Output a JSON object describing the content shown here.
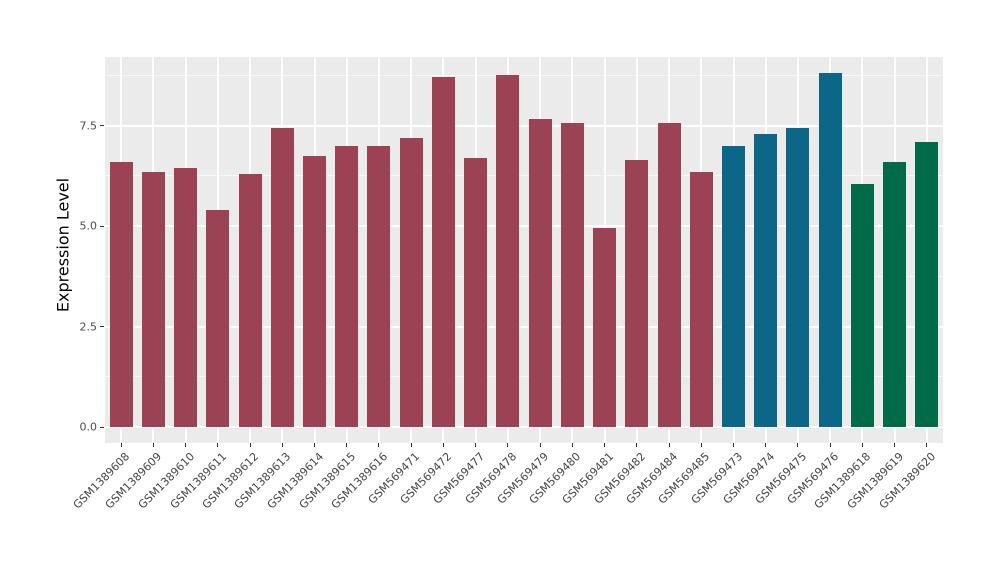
{
  "chart_data": {
    "type": "bar",
    "title": "",
    "xlabel": "",
    "ylabel": "Expression Level",
    "ylim": [
      0,
      8.8
    ],
    "yticks": [
      0.0,
      2.5,
      5.0,
      7.5
    ],
    "ytick_labels": [
      "0.0",
      "2.5",
      "5.0",
      "7.5"
    ],
    "yticks_minor": [
      1.25,
      3.75,
      6.25,
      8.75
    ],
    "grid": "grey panel with white major/minor gridlines (ggplot style)",
    "legend_position": "none",
    "categories": [
      "GSM1389608",
      "GSM1389609",
      "GSM1389610",
      "GSM1389611",
      "GSM1389612",
      "GSM1389613",
      "GSM1389614",
      "GSM1389615",
      "GSM1389616",
      "GSM569471",
      "GSM569472",
      "GSM569477",
      "GSM569478",
      "GSM569479",
      "GSM569480",
      "GSM569481",
      "GSM569482",
      "GSM569484",
      "GSM569485",
      "GSM569473",
      "GSM569474",
      "GSM569475",
      "GSM569476",
      "GSM1389618",
      "GSM1389619",
      "GSM1389620"
    ],
    "values": [
      6.6,
      6.35,
      6.45,
      5.4,
      6.3,
      7.45,
      6.75,
      7.0,
      7.0,
      7.2,
      8.7,
      6.7,
      8.75,
      7.65,
      7.55,
      4.95,
      6.65,
      7.55,
      6.35,
      7.0,
      7.3,
      7.45,
      8.8,
      6.05,
      6.6,
      7.1
    ],
    "bar_colors": [
      "#9B4255",
      "#9B4255",
      "#9B4255",
      "#9B4255",
      "#9B4255",
      "#9B4255",
      "#9B4255",
      "#9B4255",
      "#9B4255",
      "#9B4255",
      "#9B4255",
      "#9B4255",
      "#9B4255",
      "#9B4255",
      "#9B4255",
      "#9B4255",
      "#9B4255",
      "#9B4255",
      "#9B4255",
      "#0B6687",
      "#0B6687",
      "#0B6687",
      "#0B6687",
      "#016A49",
      "#016A49",
      "#016A49"
    ],
    "palette": {
      "red": "#9B4255",
      "teal": "#0B6687",
      "green": "#016A49",
      "panel_background": "#EBEBEB",
      "gridline": "#FFFFFF",
      "axis_text": "#4D4D4D",
      "axis_title": "#000000"
    }
  }
}
